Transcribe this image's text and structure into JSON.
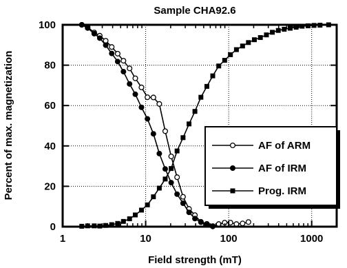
{
  "chart_data": {
    "type": "line",
    "title": "Sample CHA92.6",
    "xlabel": "Field strength (mT)",
    "ylabel": "Percent of max. magnetization",
    "x_scale": "log",
    "xlim": [
      1,
      2000
    ],
    "ylim": [
      0,
      100
    ],
    "x_ticks": [
      1,
      10,
      100,
      1000
    ],
    "x_tick_labels": [
      "1",
      "10",
      "100",
      "1000"
    ],
    "y_ticks": [
      0,
      20,
      40,
      60,
      80,
      100
    ],
    "y_tick_labels": [
      "0",
      "20",
      "40",
      "60",
      "80",
      "100"
    ],
    "grid": true,
    "legend_position": "right",
    "series": [
      {
        "name": "AF of ARM",
        "marker": "open-circle",
        "color": "#000000",
        "x": [
          1.7,
          2.0,
          2.4,
          2.8,
          3.3,
          3.9,
          4.6,
          5.4,
          6.4,
          7.5,
          8.9,
          10.5,
          12.4,
          14.6,
          17.2,
          20.3,
          23.9,
          28.2,
          33.3,
          39.2,
          46.3,
          54.6,
          64.3,
          75.9,
          89.5,
          105,
          124,
          147,
          173
        ],
        "y": [
          100,
          98.8,
          96.2,
          94.6,
          92.1,
          89.0,
          85.7,
          82.2,
          78.4,
          73.5,
          69.0,
          64.1,
          64.0,
          60.8,
          47.3,
          34.8,
          24.5,
          14.8,
          8.8,
          5.7,
          2.4,
          1.4,
          0.3,
          1.3,
          2.0,
          2.0,
          1.3,
          1.6,
          2.3
        ]
      },
      {
        "name": "AF of IRM",
        "marker": "filled-circle",
        "color": "#000000",
        "x": [
          1.7,
          2.0,
          2.4,
          2.8,
          3.3,
          3.9,
          4.6,
          5.4,
          6.4,
          7.5,
          8.9,
          10.5,
          12.4,
          14.6,
          17.2,
          20.3,
          23.9,
          28.2,
          33.3,
          39.2,
          46.3,
          54.6,
          64.3
        ],
        "y": [
          100,
          98.4,
          95.6,
          93.4,
          89.9,
          85.8,
          81.8,
          76.8,
          70.7,
          65.6,
          59.1,
          53.4,
          46.0,
          36.2,
          28.6,
          21.8,
          16.1,
          11.6,
          7.1,
          4.0,
          2.2,
          1.0,
          0.1
        ]
      },
      {
        "name": "Prog. IRM",
        "marker": "filled-square",
        "color": "#000000",
        "x": [
          1.7,
          2.0,
          2.4,
          2.8,
          3.3,
          3.9,
          4.6,
          5.4,
          6.4,
          7.5,
          8.9,
          10.5,
          12.4,
          14.6,
          17.2,
          20.3,
          23.9,
          28.2,
          33.3,
          39.2,
          46.3,
          54.6,
          64.3,
          75.9,
          89.5,
          105,
          124,
          147,
          173,
          204,
          241,
          285,
          336,
          396,
          467,
          551,
          650,
          767,
          905,
          1068,
          1260,
          1600
        ],
        "y": [
          0.2,
          0.4,
          0.4,
          0.3,
          0.6,
          1.0,
          1.6,
          2.6,
          3.9,
          5.8,
          8.2,
          10.8,
          14.8,
          19.1,
          23.6,
          28.8,
          37.5,
          44.1,
          50.9,
          57.1,
          64.1,
          69.5,
          74.7,
          79.6,
          82.4,
          85.2,
          87.7,
          89.5,
          91.2,
          92.6,
          93.7,
          95.0,
          96.3,
          97.2,
          97.8,
          98.3,
          98.8,
          99.3,
          99.5,
          99.7,
          99.8,
          100
        ]
      }
    ]
  }
}
